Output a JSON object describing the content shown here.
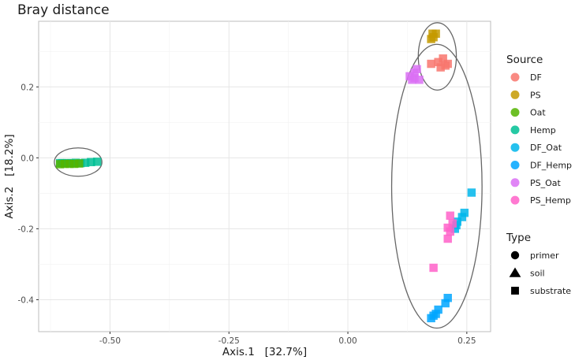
{
  "chart_data": {
    "type": "scatter",
    "title": "Bray distance",
    "xlabel": "Axis.1   [32.7%]",
    "ylabel": "Axis.2   [18.2%]",
    "xlim": [
      -0.65,
      0.3
    ],
    "ylim": [
      -0.49,
      0.385
    ],
    "x_ticks": [
      {
        "value": -0.5,
        "label": "-0.50"
      },
      {
        "value": -0.25,
        "label": "-0.25"
      },
      {
        "value": 0.0,
        "label": "0.00"
      },
      {
        "value": 0.25,
        "label": "0.25"
      }
    ],
    "y_ticks": [
      {
        "value": 0.2,
        "label": "0.2"
      },
      {
        "value": 0.0,
        "label": "0.0"
      },
      {
        "value": -0.2,
        "label": "-0.2"
      },
      {
        "value": -0.4,
        "label": "-0.4"
      }
    ],
    "grid": true,
    "legend_position": "right",
    "legend": {
      "color_title": "Source",
      "shape_title": "Type",
      "sources": [
        {
          "name": "DF",
          "color": "#F8766D"
        },
        {
          "name": "PS",
          "color": "#C49A00"
        },
        {
          "name": "Oat",
          "color": "#53B400"
        },
        {
          "name": "Hemp",
          "color": "#00C094"
        },
        {
          "name": "DF_Oat",
          "color": "#00B6EB"
        },
        {
          "name": "DF_Hemp",
          "color": "#00A6FF"
        },
        {
          "name": "PS_Oat",
          "color": "#DA70F5"
        },
        {
          "name": "PS_Hemp",
          "color": "#FF61C9"
        }
      ],
      "types": [
        {
          "name": "primer",
          "shape": "circle"
        },
        {
          "name": "soil",
          "shape": "triangle"
        },
        {
          "name": "substrate",
          "shape": "square"
        }
      ]
    },
    "series": [
      {
        "source": "Hemp",
        "type": "substrate",
        "points": [
          [
            -0.605,
            -0.015
          ],
          [
            -0.6,
            -0.015
          ],
          [
            -0.59,
            -0.015
          ],
          [
            -0.582,
            -0.015
          ],
          [
            -0.572,
            -0.014
          ],
          [
            -0.562,
            -0.015
          ],
          [
            -0.552,
            -0.014
          ],
          [
            -0.54,
            -0.012
          ],
          [
            -0.527,
            -0.011
          ]
        ]
      },
      {
        "source": "Oat",
        "type": "substrate",
        "points": [
          [
            -0.605,
            -0.018
          ],
          [
            -0.595,
            -0.017
          ],
          [
            -0.585,
            -0.017
          ],
          [
            -0.575,
            -0.017
          ],
          [
            -0.565,
            -0.016
          ]
        ]
      },
      {
        "source": "PS",
        "type": "soil",
        "points": [
          [
            0.178,
            0.35
          ],
          [
            0.185,
            0.35
          ],
          [
            0.175,
            0.335
          ],
          [
            0.18,
            0.34
          ]
        ]
      },
      {
        "source": "DF",
        "type": "soil",
        "points": [
          [
            0.2,
            0.28
          ],
          [
            0.19,
            0.27
          ],
          [
            0.175,
            0.265
          ],
          [
            0.205,
            0.26
          ],
          [
            0.195,
            0.255
          ],
          [
            0.21,
            0.265
          ]
        ]
      },
      {
        "source": "PS_Oat",
        "type": "primer",
        "points": [
          [
            0.145,
            0.25
          ],
          [
            0.14,
            0.24
          ],
          [
            0.13,
            0.23
          ],
          [
            0.14,
            0.225
          ],
          [
            0.15,
            0.22
          ],
          [
            0.135,
            0.22
          ]
        ]
      },
      {
        "source": "DF_Oat",
        "type": "primer",
        "points": [
          [
            0.26,
            -0.098
          ],
          [
            0.245,
            -0.155
          ],
          [
            0.24,
            -0.167
          ],
          [
            0.23,
            -0.18
          ],
          [
            0.228,
            -0.19
          ],
          [
            0.225,
            -0.2
          ]
        ]
      },
      {
        "source": "PS_Hemp",
        "type": "primer",
        "points": [
          [
            0.215,
            -0.163
          ],
          [
            0.22,
            -0.185
          ],
          [
            0.21,
            -0.197
          ],
          [
            0.215,
            -0.208
          ],
          [
            0.21,
            -0.228
          ],
          [
            0.18,
            -0.31
          ]
        ]
      },
      {
        "source": "DF_Hemp",
        "type": "primer",
        "points": [
          [
            0.21,
            -0.395
          ],
          [
            0.205,
            -0.41
          ],
          [
            0.19,
            -0.428
          ],
          [
            0.185,
            -0.44
          ],
          [
            0.175,
            -0.452
          ],
          [
            0.18,
            -0.445
          ]
        ]
      }
    ],
    "ellipses": [
      {
        "cx": -0.567,
        "cy": -0.012,
        "rx": 0.05,
        "ry": 0.04
      },
      {
        "cx": 0.188,
        "cy": 0.286,
        "rx": 0.04,
        "ry": 0.095
      },
      {
        "cx": 0.187,
        "cy": -0.08,
        "rx": 0.095,
        "ry": 0.4
      }
    ]
  }
}
